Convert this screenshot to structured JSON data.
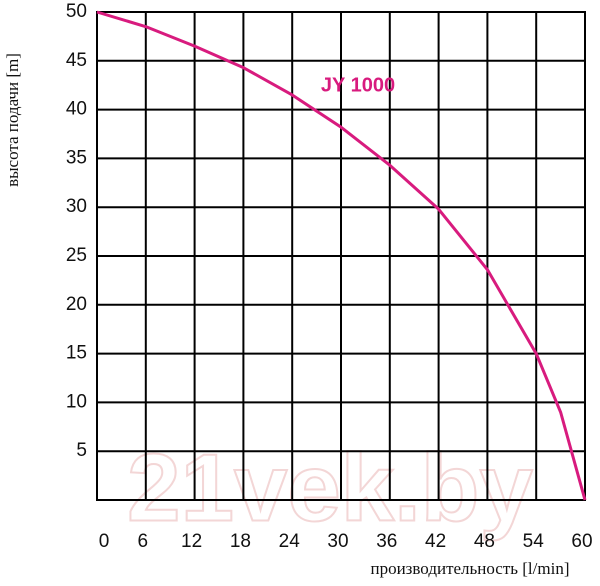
{
  "chart_data": {
    "type": "line",
    "x": [
      0,
      6,
      12,
      18,
      24,
      30,
      36,
      42,
      48,
      54,
      57,
      60
    ],
    "series": [
      {
        "name": "JY 1000",
        "color": "#d81b7e",
        "values": [
          50,
          48.5,
          46.5,
          44.3,
          41.5,
          38.2,
          34.3,
          29.8,
          23.6,
          15,
          9,
          0
        ]
      }
    ],
    "xlim": [
      0,
      60
    ],
    "xticks": [
      0,
      6,
      12,
      18,
      24,
      30,
      36,
      42,
      48,
      54,
      60
    ],
    "ylim": [
      0,
      50
    ],
    "yticks": [
      5,
      10,
      15,
      20,
      25,
      30,
      35,
      40,
      45,
      50
    ],
    "x_label": "производительность  [l/min]",
    "y_label": "высота подачи   [m]",
    "watermark": "21vek.by",
    "grid": true
  }
}
